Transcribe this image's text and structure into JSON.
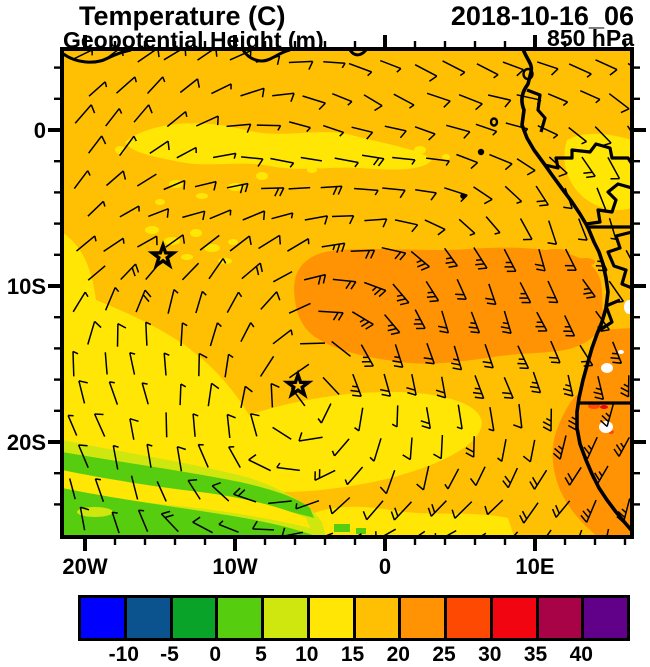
{
  "header": {
    "title": "Temperature (C)",
    "subtitle": "Geopotential Height (m)",
    "datetime": "2018-10-16_06",
    "level": "850 hPa"
  },
  "chart_data": {
    "type": "heatmap",
    "title": "Temperature (C)",
    "subtitle": "Geopotential Height (m)",
    "datetime": "2018-10-16_06",
    "pressure_level": "850 hPa",
    "overlays": [
      "geopotential height contours",
      "wind barbs",
      "African coastline"
    ],
    "x_axis": {
      "labels": [
        "20W",
        "10W",
        "0",
        "10E"
      ],
      "lon_values": [
        -20,
        -10,
        0,
        10
      ]
    },
    "y_axis": {
      "labels": [
        "0",
        "10S",
        "20S"
      ],
      "lat_values": [
        0,
        -10,
        -20
      ]
    },
    "extent": {
      "lon_min": -21.5,
      "lon_max": 16.5,
      "lat_north": 5.2,
      "lat_south": -26.2
    },
    "colorbar": {
      "units": "C",
      "tick_labels": [
        "-10",
        "-5",
        "0",
        "5",
        "10",
        "15",
        "20",
        "25",
        "30",
        "35",
        "40"
      ],
      "colors": [
        "#0000ff",
        "#0b538e",
        "#0aa32a",
        "#56cd0e",
        "#cfe70f",
        "#ffe605",
        "#ffc003",
        "#ff9303",
        "#fe4902",
        "#f00511",
        "#a90348",
        "#610189"
      ]
    },
    "temperature_regions": [
      {
        "region": "most of ocean domain",
        "value_c": "20-25"
      },
      {
        "region": "warm core mid-east toward Angola coast (8S-14S) and SE coastal strip",
        "value_c": "25-30"
      },
      {
        "region": "wavy band near 2S-3S, patches near right edge and west edge",
        "value_c": "15-20"
      },
      {
        "region": "southwest corner diagonal bands",
        "value_c": "10-15"
      },
      {
        "region": "far southwest corner bands",
        "value_c": "5-10"
      },
      {
        "region": "tiny spots at Angola coast ~17.5S",
        "value_c": "30-40"
      }
    ],
    "markers": [
      {
        "type": "star",
        "lon": -14.8,
        "lat": -8.1
      },
      {
        "type": "star",
        "lon": -5.8,
        "lat": -16.4
      }
    ]
  },
  "colors": {
    "map_base": "#ffc003",
    "warm": "#ff9303",
    "yellow": "#ffe605",
    "green": "#56cd0e",
    "yellow_green": "#cfe70f",
    "hot": "#fe4902",
    "red": "#f00511",
    "white_spot": "#ffffff",
    "line": "#000000"
  }
}
